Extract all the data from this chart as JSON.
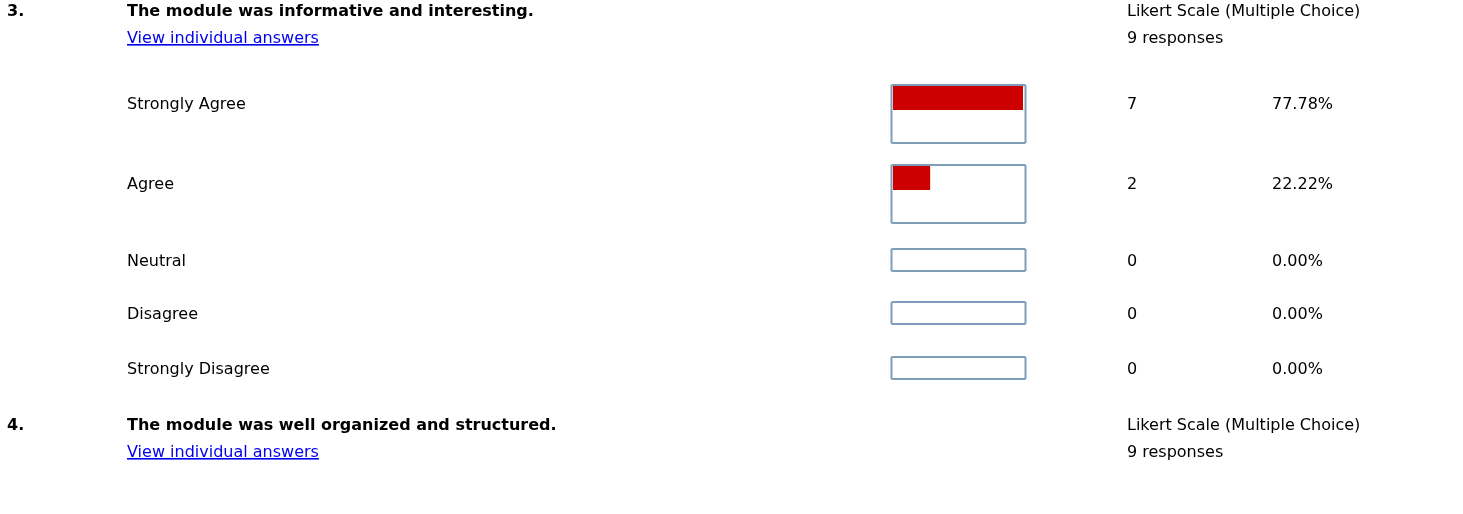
{
  "chart_data": [
    {
      "type": "bar",
      "orientation": "horizontal",
      "title": "The module was informative and interesting.",
      "categories": [
        "Strongly Agree",
        "Agree",
        "Neutral",
        "Disagree",
        "Strongly Disagree"
      ],
      "values": [
        7,
        2,
        0,
        0,
        0
      ],
      "color": "#cc0000",
      "data_labels": true,
      "annotations": [
        "3.",
        "View individual answers",
        "Likert Scale (Multiple Choice)",
        "9 responses",
        "77.78%",
        "22.22%",
        "0.00%",
        "0.00%",
        "0.00%"
      ]
    },
    {
      "type": "other",
      "title": "The module was well organized and structured.",
      "annotations": [
        "4.",
        "View individual answers",
        "Likert Scale (Multiple Choice)",
        "9 responses"
      ]
    }
  ]
}
